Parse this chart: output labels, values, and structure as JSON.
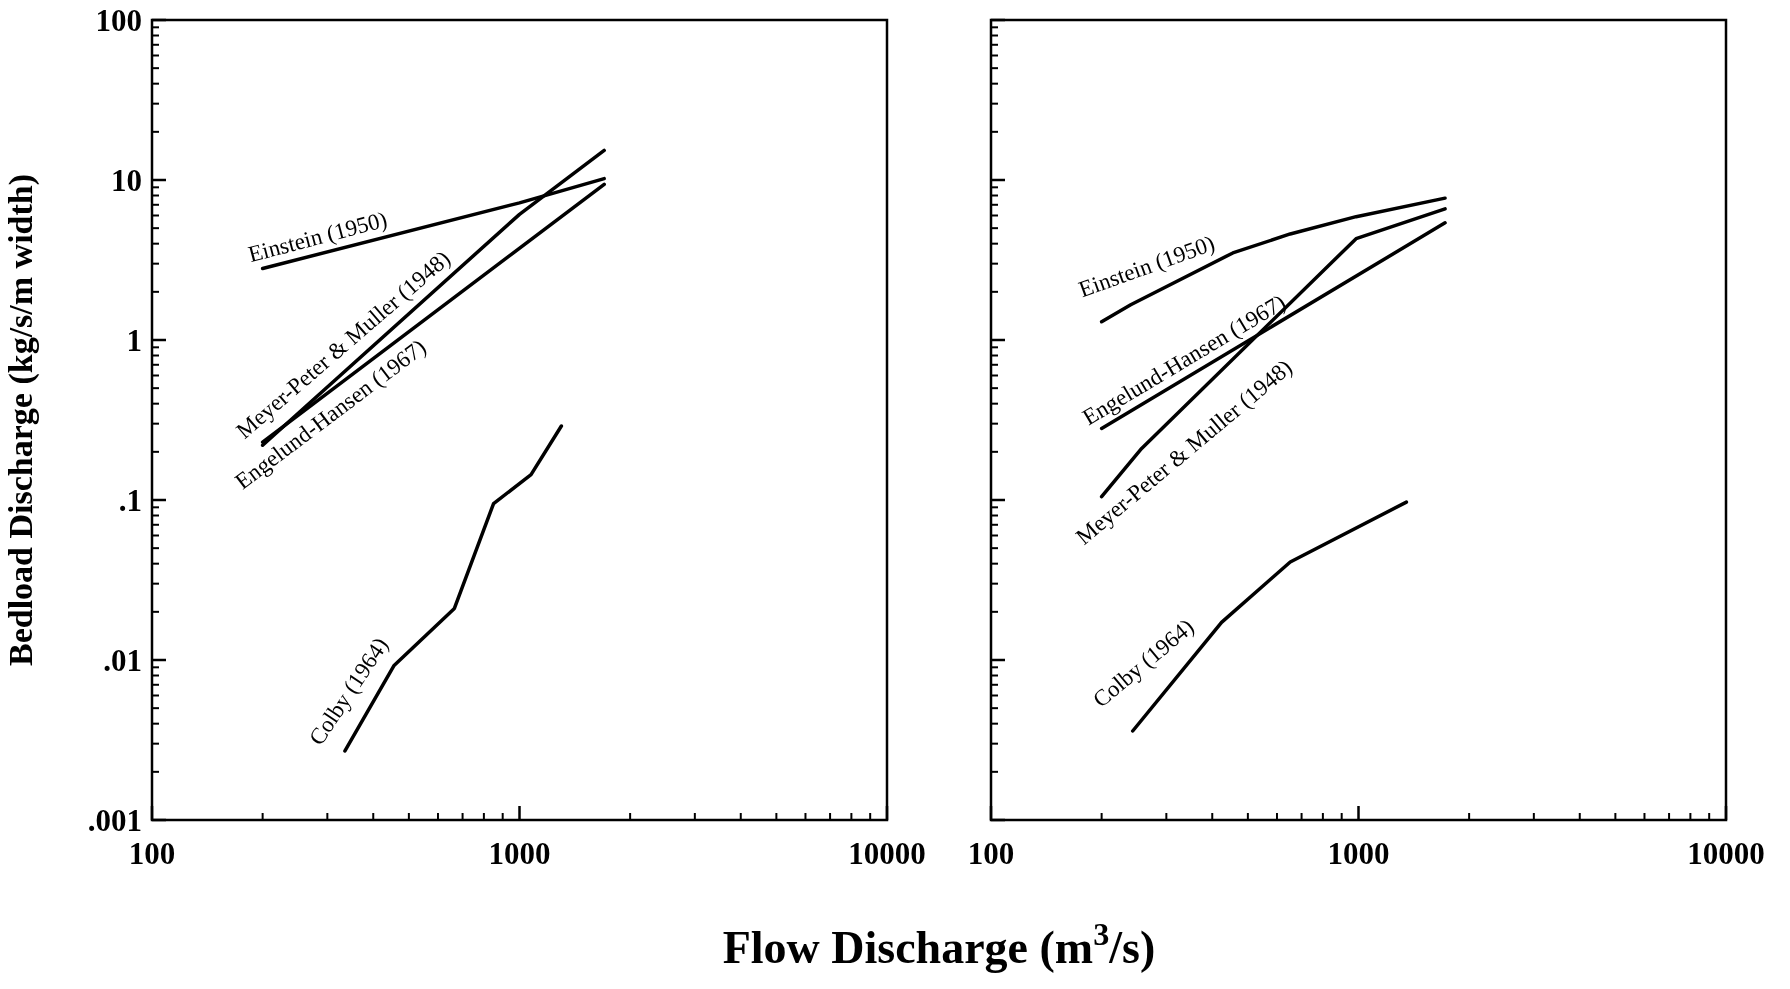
{
  "chart_data": [
    {
      "type": "line",
      "ylabel": "Bedload Discharge (kg/s/m width)",
      "xlabel": "Flow Discharge (m$^{3}$/s)",
      "log": "xy",
      "xlim": [
        100,
        10000
      ],
      "ylim": [
        0.001,
        100
      ],
      "xticks": [
        100,
        1000,
        10000
      ],
      "yticks": [
        {
          "value": 0.001,
          "label": ".001"
        },
        {
          "value": 0.01,
          "label": ".01"
        },
        {
          "value": 0.1,
          "label": ".1"
        },
        1,
        10,
        100
      ],
      "line_style": "solid",
      "series": [
        {
          "name": "Einstein (1950)",
          "color": "#000000",
          "x": [
            200,
            1000,
            1700
          ],
          "values": [
            2.8,
            7.2,
            10.2
          ]
        },
        {
          "name": "Meyer-Peter & Muller (1948)",
          "color": "#000000",
          "x": [
            200,
            1000,
            1700
          ],
          "values": [
            0.22,
            6.1,
            15.3
          ]
        },
        {
          "name": "Engelund-Hansen (1967)",
          "color": "#000000",
          "x": [
            200,
            1700
          ],
          "values": [
            0.23,
            9.4
          ]
        },
        {
          "name": "Colby (1964)",
          "color": "#000000",
          "x": [
            335,
            455,
            665,
            850,
            1075,
            1300
          ],
          "values": [
            0.0027,
            0.0092,
            0.021,
            0.095,
            0.144,
            0.29
          ]
        }
      ]
    },
    {
      "type": "line",
      "log": "xy",
      "xlim": [
        100,
        10000
      ],
      "ylim": [
        0.001,
        100
      ],
      "xticks": [
        100,
        1000,
        10000
      ],
      "yticks": [
        {
          "value": 0.001,
          "label": null
        },
        {
          "value": 0.01,
          "label": null
        },
        {
          "value": 0.1,
          "label": null
        },
        {
          "value": 1,
          "label": null
        },
        {
          "value": 10,
          "label": null
        },
        {
          "value": 100,
          "label": null
        }
      ],
      "tick_labels": "x",
      "line_style": "solid",
      "series": [
        {
          "name": "Einstein (1950)",
          "color": "#000000",
          "x": [
            200,
            240,
            455,
            652,
            985,
            1720
          ],
          "values": [
            1.3,
            1.66,
            3.5,
            4.6,
            5.9,
            7.7
          ]
        },
        {
          "name": "Engelund-Hansen (1967)",
          "color": "#000000",
          "x": [
            200,
            1720
          ],
          "values": [
            0.28,
            5.4
          ]
        },
        {
          "name": "Meyer-Peter & Muller (1948)",
          "color": "#000000",
          "x": [
            200,
            257,
            985,
            1720
          ],
          "values": [
            0.105,
            0.21,
            4.3,
            6.6
          ]
        },
        {
          "name": "Colby (1964)",
          "color": "#000000",
          "x": [
            243,
            424,
            652,
            1350
          ],
          "values": [
            0.0036,
            0.0172,
            0.041,
            0.097
          ]
        }
      ]
    }
  ]
}
